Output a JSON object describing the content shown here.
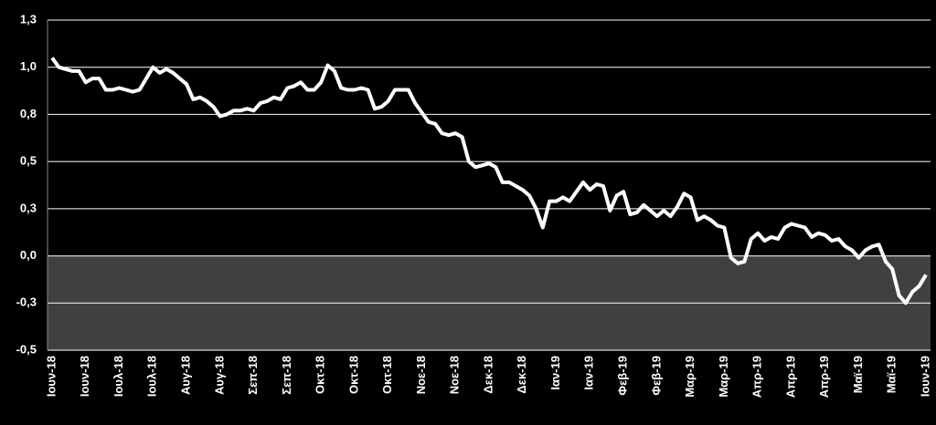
{
  "chart_data": {
    "type": "line",
    "categories": [
      "Ιουν-18",
      null,
      null,
      null,
      null,
      "Ιουν-18",
      null,
      null,
      null,
      null,
      "Ιουλ-18",
      null,
      null,
      null,
      null,
      "Ιουλ-18",
      null,
      null,
      null,
      null,
      "Αυγ-18",
      null,
      null,
      null,
      null,
      "Αυγ-18",
      null,
      null,
      null,
      null,
      "Σεπ-18",
      null,
      null,
      null,
      null,
      "Σεπ-18",
      null,
      null,
      null,
      null,
      "Οκτ-18",
      null,
      null,
      null,
      null,
      "Οκτ-18",
      null,
      null,
      null,
      null,
      "Οκτ-18",
      null,
      null,
      null,
      null,
      "Νοε-18",
      null,
      null,
      null,
      null,
      "Νοε-18",
      null,
      null,
      null,
      null,
      "Δεκ-18",
      null,
      null,
      null,
      null,
      "Δεκ-18",
      null,
      null,
      null,
      null,
      "Ιαν-19",
      null,
      null,
      null,
      null,
      "Ιαν-19",
      null,
      null,
      null,
      null,
      "Φεβ-19",
      null,
      null,
      null,
      null,
      "Φεβ-19",
      null,
      null,
      null,
      null,
      "Μαρ-19",
      null,
      null,
      null,
      null,
      "Μαρ-19",
      null,
      null,
      null,
      null,
      "Απρ-19",
      null,
      null,
      null,
      null,
      "Απρ-19",
      null,
      null,
      null,
      null,
      "Απρ-19",
      null,
      null,
      null,
      null,
      "Μαϊ-19",
      null,
      null,
      null,
      null,
      "Μαϊ-19",
      null,
      null,
      null,
      null,
      "Ιουν-19"
    ],
    "values": [
      1.05,
      1.0,
      0.99,
      0.98,
      0.98,
      0.92,
      0.94,
      0.94,
      0.88,
      0.88,
      0.89,
      0.88,
      0.87,
      0.88,
      0.94,
      1.0,
      0.97,
      0.99,
      0.97,
      0.94,
      0.91,
      0.83,
      0.84,
      0.82,
      0.79,
      0.74,
      0.75,
      0.77,
      0.77,
      0.78,
      0.77,
      0.81,
      0.82,
      0.84,
      0.83,
      0.89,
      0.9,
      0.92,
      0.88,
      0.88,
      0.92,
      1.01,
      0.98,
      0.89,
      0.88,
      0.88,
      0.89,
      0.88,
      0.78,
      0.79,
      0.82,
      0.88,
      0.88,
      0.88,
      0.81,
      0.76,
      0.71,
      0.7,
      0.65,
      0.64,
      0.65,
      0.63,
      0.5,
      0.47,
      0.48,
      0.49,
      0.47,
      0.39,
      0.39,
      0.37,
      0.35,
      0.32,
      0.25,
      0.15,
      0.29,
      0.29,
      0.31,
      0.29,
      0.34,
      0.39,
      0.35,
      0.38,
      0.37,
      0.24,
      0.32,
      0.34,
      0.22,
      0.23,
      0.27,
      0.24,
      0.21,
      0.24,
      0.21,
      0.26,
      0.33,
      0.31,
      0.19,
      0.21,
      0.19,
      0.16,
      0.15,
      -0.01,
      -0.04,
      -0.03,
      0.09,
      0.12,
      0.08,
      0.1,
      0.09,
      0.15,
      0.17,
      0.16,
      0.15,
      0.1,
      0.12,
      0.11,
      0.08,
      0.09,
      0.05,
      0.03,
      -0.01,
      0.03,
      0.05,
      0.06,
      -0.03,
      -0.07,
      -0.21,
      -0.25,
      -0.19,
      -0.16,
      -0.1
    ],
    "color": "#ffffff",
    "negative_region_color": "#404040",
    "ylim": [
      -0.5,
      1.25
    ],
    "yticks": [
      {
        "value": 1.25,
        "label": "1,3"
      },
      {
        "value": 1,
        "label": "1,0"
      },
      {
        "value": 0.75,
        "label": "0,8"
      },
      {
        "value": 0.5,
        "label": "0,5"
      },
      {
        "value": 0.25,
        "label": "0,3"
      },
      {
        "value": 0,
        "label": "0,0"
      },
      {
        "value": -0.25,
        "label": "-0,3"
      },
      {
        "value": -0.5,
        "label": "-0,5"
      }
    ],
    "grid": true
  }
}
